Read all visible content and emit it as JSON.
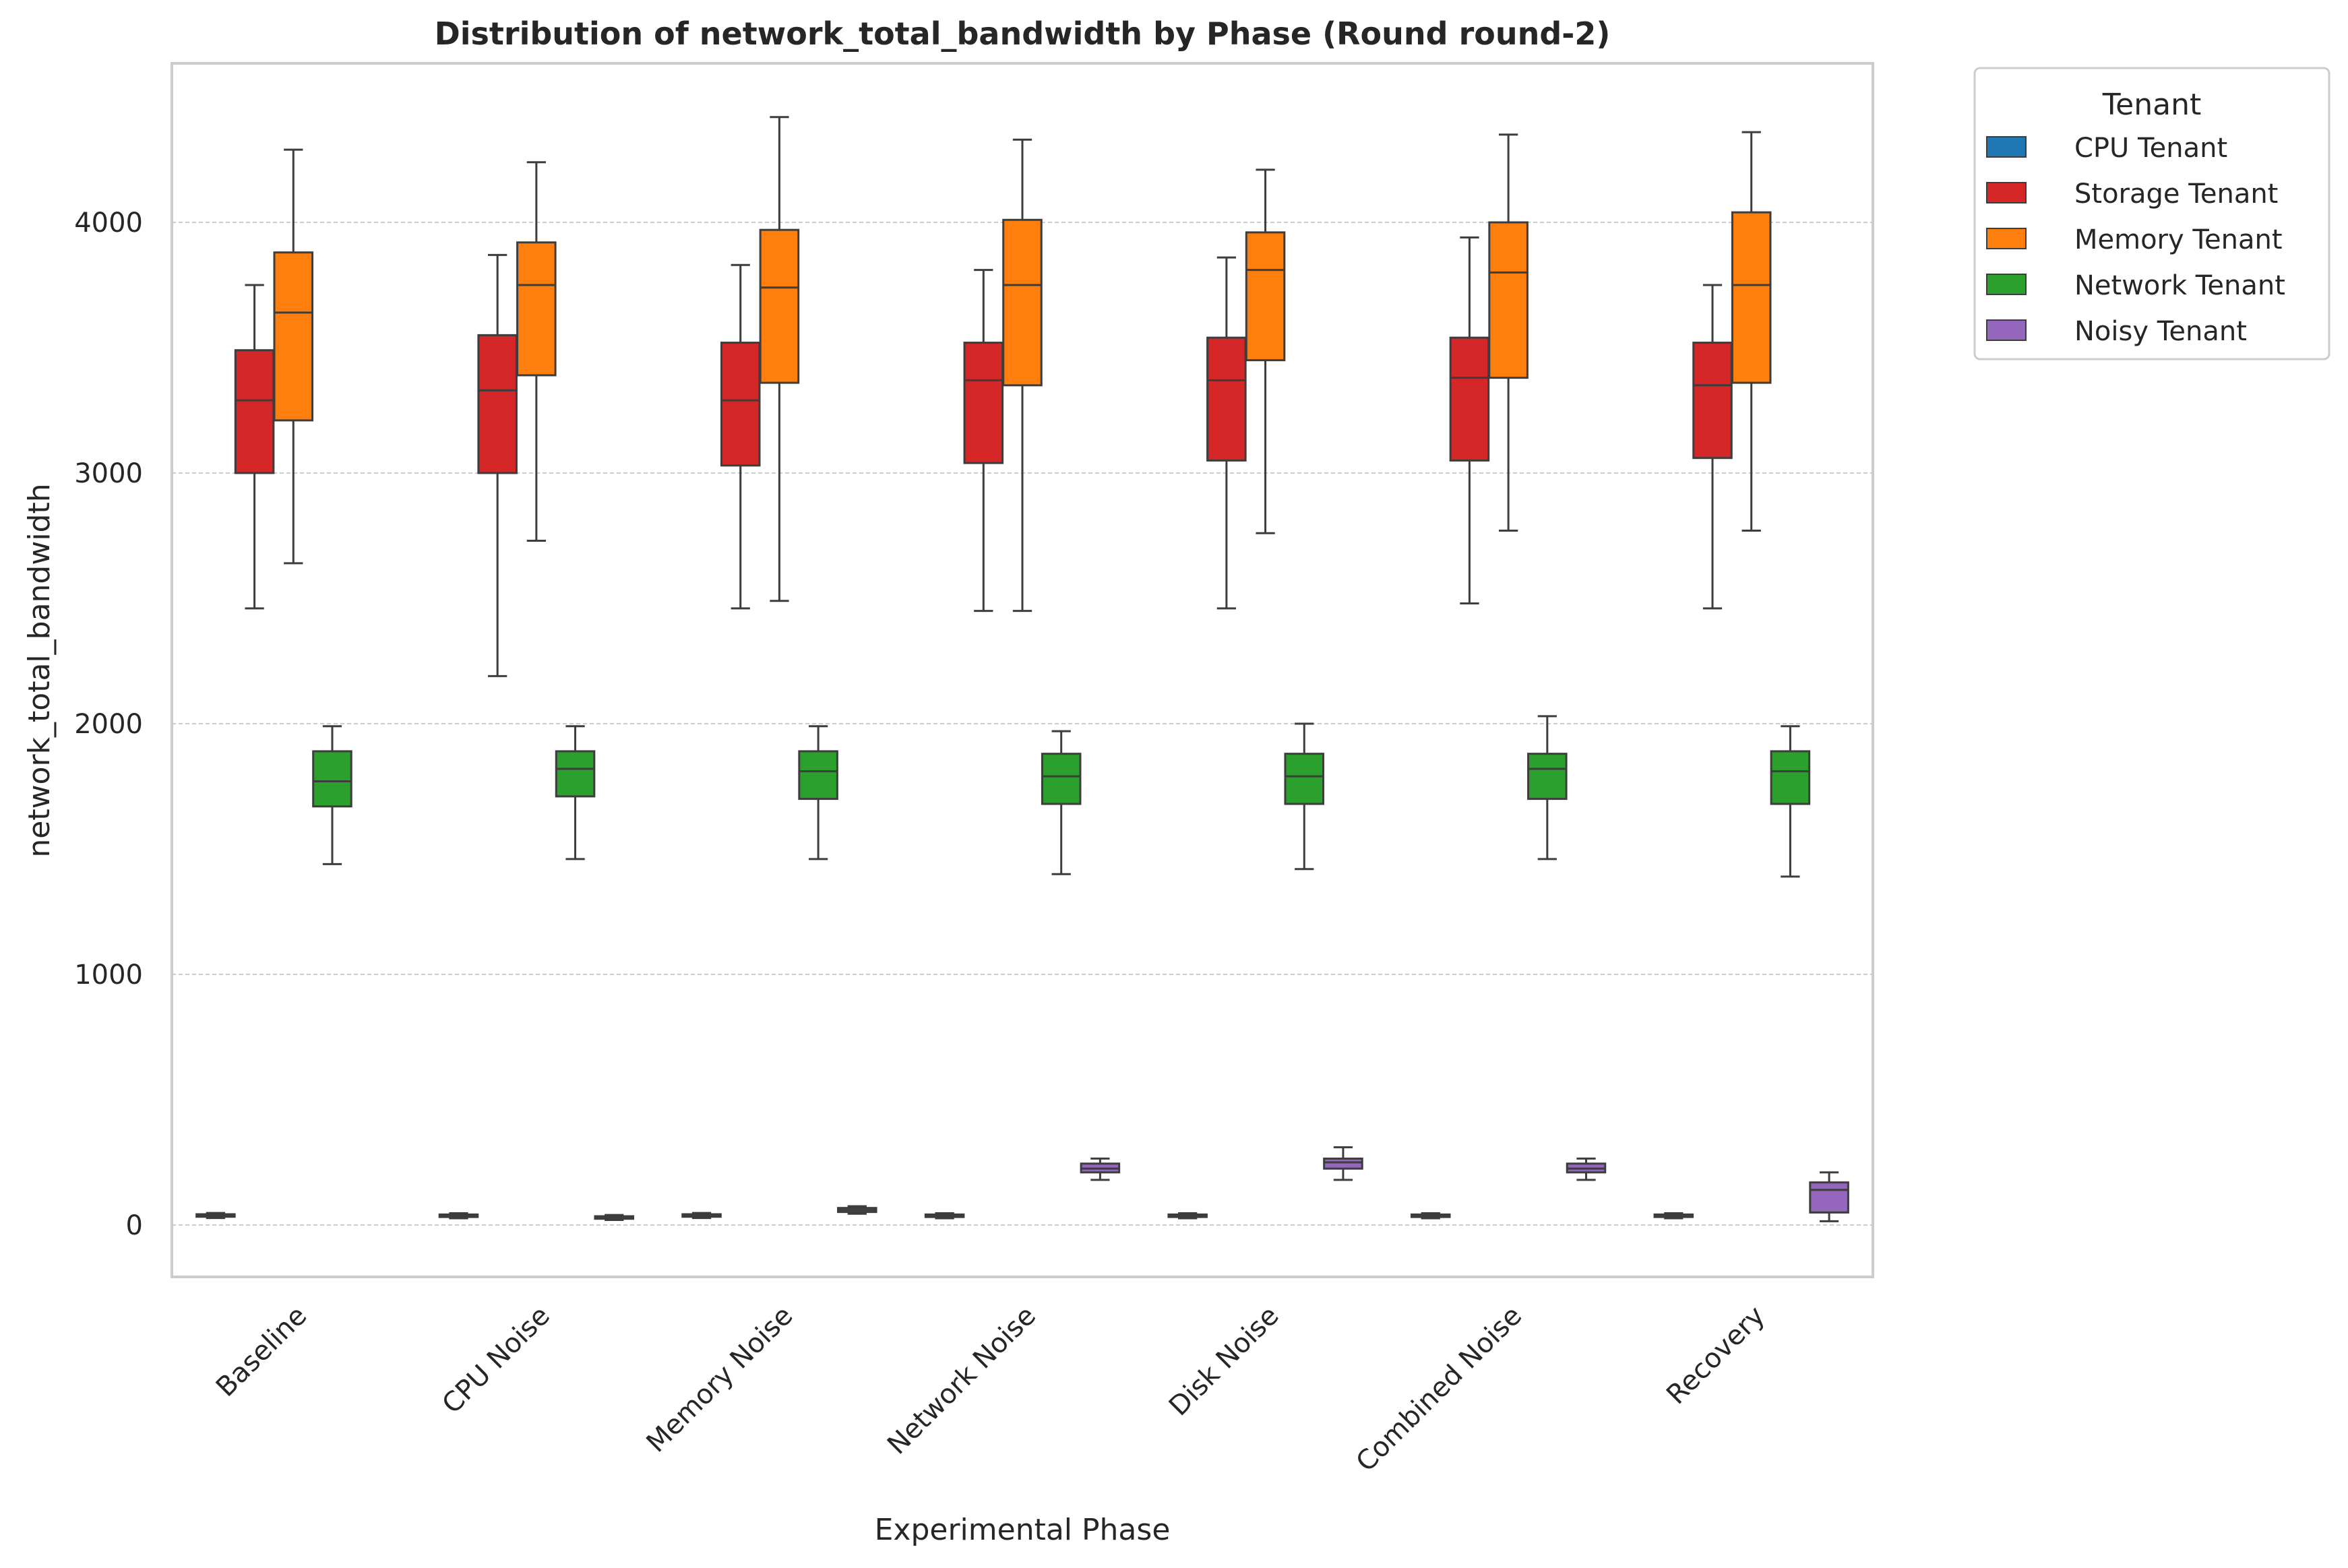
{
  "chart_data": {
    "type": "box",
    "title": "Distribution of network_total_bandwidth by Phase (Round round-2)",
    "xlabel": "Experimental Phase",
    "ylabel": "network_total_bandwidth",
    "ylim": [
      -200,
      4650
    ],
    "yticks": [
      0,
      1000,
      2000,
      3000,
      4000
    ],
    "grid": "y",
    "categories": [
      "Baseline",
      "CPU Noise",
      "Memory Noise",
      "Network Noise",
      "Disk Noise",
      "Combined Noise",
      "Recovery"
    ],
    "legend": {
      "title": "Tenant",
      "placement": "outside-right"
    },
    "series": [
      {
        "name": "CPU Tenant",
        "color": "#1f77b4",
        "boxes": [
          {
            "min": 28,
            "q1": 33,
            "median": 38,
            "q3": 43,
            "max": 48
          },
          {
            "min": 27,
            "q1": 32,
            "median": 37,
            "q3": 42,
            "max": 47
          },
          {
            "min": 28,
            "q1": 33,
            "median": 38,
            "q3": 43,
            "max": 48
          },
          {
            "min": 27,
            "q1": 32,
            "median": 37,
            "q3": 42,
            "max": 47
          },
          {
            "min": 27,
            "q1": 32,
            "median": 37,
            "q3": 42,
            "max": 47
          },
          {
            "min": 27,
            "q1": 32,
            "median": 37,
            "q3": 42,
            "max": 47
          },
          {
            "min": 27,
            "q1": 32,
            "median": 37,
            "q3": 42,
            "max": 47
          }
        ]
      },
      {
        "name": "Storage Tenant",
        "color": "#d62728",
        "boxes": [
          {
            "min": 2460,
            "q1": 3000,
            "median": 3290,
            "q3": 3490,
            "max": 3750
          },
          {
            "min": 2190,
            "q1": 3000,
            "median": 3330,
            "q3": 3550,
            "max": 3870
          },
          {
            "min": 2460,
            "q1": 3030,
            "median": 3290,
            "q3": 3520,
            "max": 3830
          },
          {
            "min": 2450,
            "q1": 3040,
            "median": 3370,
            "q3": 3520,
            "max": 3810
          },
          {
            "min": 2460,
            "q1": 3050,
            "median": 3370,
            "q3": 3540,
            "max": 3860
          },
          {
            "min": 2480,
            "q1": 3050,
            "median": 3380,
            "q3": 3540,
            "max": 3940
          },
          {
            "min": 2460,
            "q1": 3060,
            "median": 3350,
            "q3": 3520,
            "max": 3750
          }
        ]
      },
      {
        "name": "Memory Tenant",
        "color": "#ff7f0e",
        "boxes": [
          {
            "min": 2640,
            "q1": 3210,
            "median": 3640,
            "q3": 3880,
            "max": 4290
          },
          {
            "min": 2730,
            "q1": 3390,
            "median": 3750,
            "q3": 3920,
            "max": 4240
          },
          {
            "min": 2490,
            "q1": 3360,
            "median": 3740,
            "q3": 3970,
            "max": 4420
          },
          {
            "min": 2450,
            "q1": 3350,
            "median": 3750,
            "q3": 4010,
            "max": 4330
          },
          {
            "min": 2760,
            "q1": 3450,
            "median": 3810,
            "q3": 3960,
            "max": 4210
          },
          {
            "min": 2770,
            "q1": 3380,
            "median": 3800,
            "q3": 4000,
            "max": 4350
          },
          {
            "min": 2770,
            "q1": 3360,
            "median": 3750,
            "q3": 4040,
            "max": 4360
          }
        ]
      },
      {
        "name": "Network Tenant",
        "color": "#2ca02c",
        "boxes": [
          {
            "min": 1440,
            "q1": 1670,
            "median": 1770,
            "q3": 1890,
            "max": 1990
          },
          {
            "min": 1460,
            "q1": 1710,
            "median": 1820,
            "q3": 1890,
            "max": 1990
          },
          {
            "min": 1460,
            "q1": 1700,
            "median": 1810,
            "q3": 1890,
            "max": 1990
          },
          {
            "min": 1400,
            "q1": 1680,
            "median": 1790,
            "q3": 1880,
            "max": 1970
          },
          {
            "min": 1420,
            "q1": 1680,
            "median": 1790,
            "q3": 1880,
            "max": 2000
          },
          {
            "min": 1460,
            "q1": 1700,
            "median": 1820,
            "q3": 1880,
            "max": 2030
          },
          {
            "min": 1390,
            "q1": 1680,
            "median": 1810,
            "q3": 1890,
            "max": 1990
          }
        ]
      },
      {
        "name": "Noisy Tenant",
        "color": "#9467bd",
        "boxes": [
          null,
          {
            "min": 20,
            "q1": 25,
            "median": 30,
            "q3": 35,
            "max": 40
          },
          {
            "min": 45,
            "q1": 52,
            "median": 60,
            "q3": 68,
            "max": 75
          },
          {
            "min": 180,
            "q1": 210,
            "median": 225,
            "q3": 245,
            "max": 265
          },
          {
            "min": 180,
            "q1": 225,
            "median": 250,
            "q3": 265,
            "max": 310
          },
          {
            "min": 180,
            "q1": 210,
            "median": 225,
            "q3": 245,
            "max": 265
          },
          {
            "min": 15,
            "q1": 50,
            "median": 140,
            "q3": 170,
            "max": 210
          }
        ]
      }
    ]
  }
}
